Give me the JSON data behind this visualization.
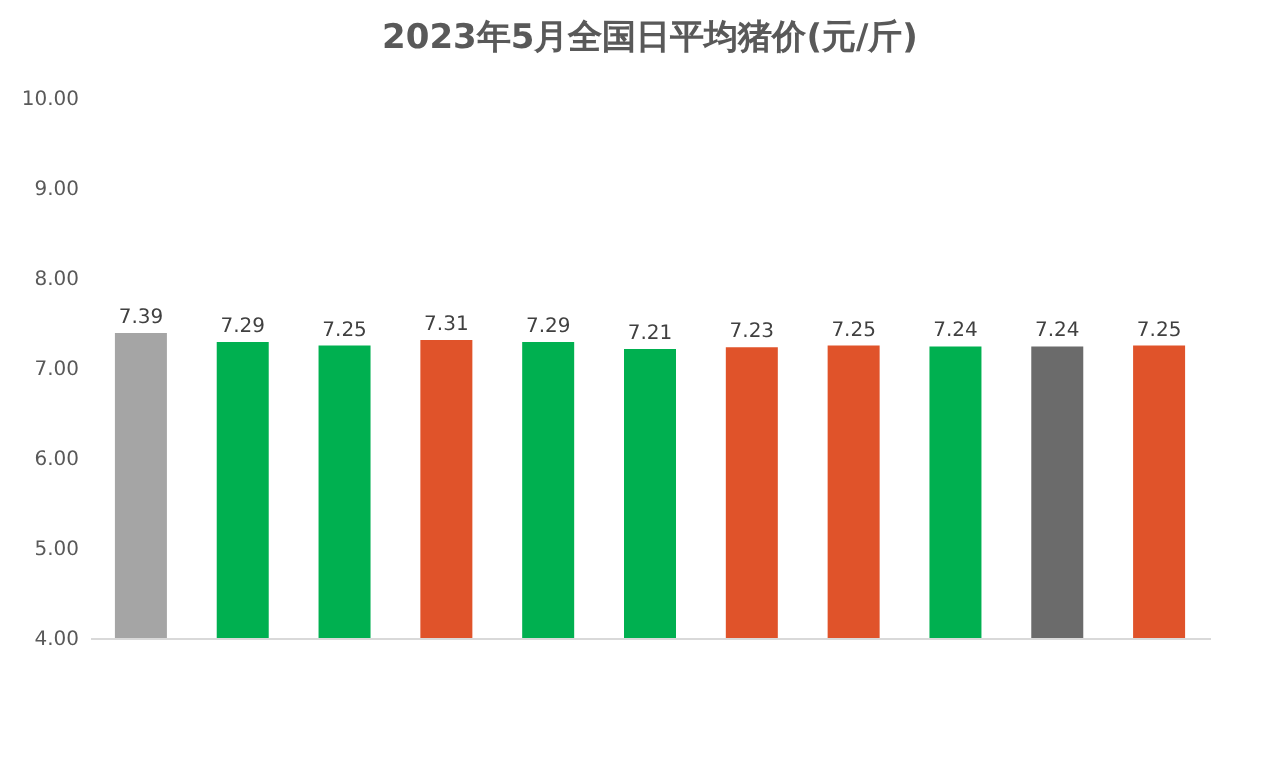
{
  "chart_data": {
    "type": "bar",
    "title": "2023年5月全国日平均猪价(元/斤)",
    "categories": [
      null,
      null,
      null,
      null,
      null,
      null,
      null,
      null,
      null,
      null,
      null
    ],
    "values": [
      7.39,
      7.29,
      7.25,
      7.31,
      7.29,
      7.21,
      7.23,
      7.25,
      7.24,
      7.24,
      7.25
    ],
    "colors": [
      "#a5a5a5",
      "#00b050",
      "#00b050",
      "#e0532a",
      "#00b050",
      "#00b050",
      "#e0532a",
      "#e0532a",
      "#00b050",
      "#6b6b6b",
      "#e0532a"
    ],
    "ylim": [
      4,
      10
    ],
    "yticks": [
      {
        "value": 4,
        "label": "4.00"
      },
      {
        "value": 5,
        "label": "5.00"
      },
      {
        "value": 6,
        "label": "6.00"
      },
      {
        "value": 7,
        "label": "7.00"
      },
      {
        "value": 8,
        "label": "8.00"
      },
      {
        "value": 9,
        "label": "9.00"
      },
      {
        "value": 10,
        "label": "10.00"
      }
    ],
    "data_labels": true,
    "grid": false
  }
}
